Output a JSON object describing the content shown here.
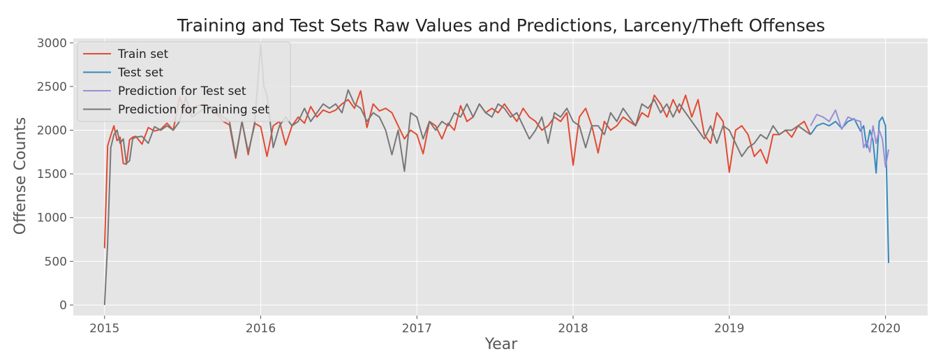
{
  "chart_data": {
    "type": "line",
    "title": "Training and Test Sets Raw Values and Predictions, Larceny/Theft Offenses",
    "xlabel": "Year",
    "ylabel": "Offense Counts",
    "xlim": [
      2014.8,
      2020.27
    ],
    "ylim": [
      -120,
      3050
    ],
    "x_ticks": [
      2015,
      2016,
      2017,
      2018,
      2019,
      2020
    ],
    "x_tick_labels": [
      "2015",
      "2016",
      "2017",
      "2018",
      "2019",
      "2020"
    ],
    "y_ticks": [
      0,
      500,
      1000,
      1500,
      2000,
      2500,
      3000
    ],
    "y_tick_labels": [
      "0",
      "500",
      "1000",
      "1500",
      "2000",
      "2500",
      "3000"
    ],
    "grid": true,
    "legend": "top-left",
    "series": [
      {
        "name": "Train set",
        "color": "#e24a33",
        "x": [
          2015.0,
          2015.02,
          2015.04,
          2015.06,
          2015.08,
          2015.1,
          2015.12,
          2015.14,
          2015.16,
          2015.18,
          2015.2,
          2015.24,
          2015.28,
          2015.32,
          2015.36,
          2015.4,
          2015.44,
          2015.48,
          2015.52,
          2015.56,
          2015.6,
          2015.64,
          2015.68,
          2015.72,
          2015.76,
          2015.8,
          2015.84,
          2015.88,
          2015.92,
          2015.96,
          2016.0,
          2016.04,
          2016.08,
          2016.12,
          2016.16,
          2016.2,
          2016.24,
          2016.28,
          2016.32,
          2016.36,
          2016.4,
          2016.44,
          2016.48,
          2016.52,
          2016.56,
          2016.6,
          2016.64,
          2016.68,
          2016.72,
          2016.76,
          2016.8,
          2016.84,
          2016.88,
          2016.92,
          2016.96,
          2017.0,
          2017.04,
          2017.08,
          2017.12,
          2017.16,
          2017.2,
          2017.24,
          2017.28,
          2017.32,
          2017.36,
          2017.4,
          2017.44,
          2017.48,
          2017.52,
          2017.56,
          2017.6,
          2017.64,
          2017.68,
          2017.72,
          2017.76,
          2017.8,
          2017.84,
          2017.88,
          2017.92,
          2017.96,
          2018.0,
          2018.04,
          2018.08,
          2018.12,
          2018.16,
          2018.2,
          2018.24,
          2018.28,
          2018.32,
          2018.36,
          2018.4,
          2018.44,
          2018.48,
          2018.52,
          2018.56,
          2018.6,
          2018.64,
          2018.68,
          2018.72,
          2018.76,
          2018.8,
          2018.84,
          2018.88,
          2018.92,
          2018.96,
          2019.0,
          2019.04,
          2019.08,
          2019.12,
          2019.16,
          2019.2,
          2019.24,
          2019.28,
          2019.32,
          2019.36,
          2019.4,
          2019.44,
          2019.48,
          2019.52
        ],
        "y": [
          650,
          1820,
          1940,
          2050,
          1880,
          1920,
          1620,
          1610,
          1890,
          1920,
          1930,
          1840,
          2030,
          1990,
          2010,
          2080,
          2000,
          2380,
          2200,
          2260,
          2280,
          2300,
          2240,
          2180,
          2100,
          2060,
          1680,
          2100,
          1720,
          2080,
          2040,
          1700,
          2050,
          2100,
          1830,
          2050,
          2150,
          2080,
          2270,
          2150,
          2230,
          2200,
          2230,
          2300,
          2350,
          2250,
          2450,
          2030,
          2300,
          2220,
          2250,
          2200,
          2050,
          1900,
          2000,
          1950,
          1730,
          2100,
          2050,
          1900,
          2080,
          2000,
          2280,
          2100,
          2150,
          2300,
          2200,
          2250,
          2200,
          2300,
          2200,
          2100,
          2250,
          2150,
          2100,
          2000,
          2050,
          2150,
          2100,
          2200,
          1600,
          2150,
          2250,
          2050,
          1740,
          2100,
          2000,
          2050,
          2150,
          2100,
          2050,
          2200,
          2150,
          2400,
          2300,
          2150,
          2350,
          2200,
          2400,
          2150,
          2350,
          1950,
          1850,
          2200,
          2100,
          1520,
          2000,
          2050,
          1950,
          1700,
          1780,
          1620,
          1950,
          1950,
          2000,
          1920,
          2050,
          2100,
          1950
        ]
      },
      {
        "name": "Test set",
        "color": "#348abd",
        "x": [
          2019.52,
          2019.56,
          2019.6,
          2019.64,
          2019.68,
          2019.72,
          2019.76,
          2019.8,
          2019.84,
          2019.86,
          2019.88,
          2019.9,
          2019.92,
          2019.94,
          2019.96,
          2019.98,
          2020.0,
          2020.02
        ],
        "y": [
          1950,
          2050,
          2080,
          2050,
          2100,
          2020,
          2100,
          2130,
          1990,
          2050,
          1800,
          2000,
          1880,
          1510,
          2100,
          2150,
          2050,
          480
        ]
      },
      {
        "name": "Prediction for Test set",
        "color": "#988ed5",
        "x": [
          2019.52,
          2019.56,
          2019.6,
          2019.64,
          2019.68,
          2019.72,
          2019.76,
          2019.8,
          2019.84,
          2019.86,
          2019.88,
          2019.9,
          2019.92,
          2019.94,
          2019.96,
          2019.98,
          2020.0,
          2020.02
        ],
        "y": [
          2050,
          2180,
          2150,
          2100,
          2230,
          2010,
          2150,
          2120,
          2100,
          1800,
          1870,
          1750,
          2050,
          1850,
          2000,
          1900,
          1580,
          1780
        ]
      },
      {
        "name": "Prediction for Training set",
        "color": "#777777",
        "x": [
          2015.0,
          2015.02,
          2015.04,
          2015.06,
          2015.08,
          2015.1,
          2015.12,
          2015.14,
          2015.16,
          2015.18,
          2015.2,
          2015.24,
          2015.28,
          2015.32,
          2015.36,
          2015.4,
          2015.44,
          2015.48,
          2015.52,
          2015.56,
          2015.6,
          2015.64,
          2015.68,
          2015.72,
          2015.76,
          2015.8,
          2015.84,
          2015.88,
          2015.92,
          2015.96,
          2016.0,
          2016.02,
          2016.04,
          2016.08,
          2016.12,
          2016.16,
          2016.2,
          2016.24,
          2016.28,
          2016.32,
          2016.36,
          2016.4,
          2016.44,
          2016.48,
          2016.52,
          2016.56,
          2016.6,
          2016.64,
          2016.68,
          2016.72,
          2016.76,
          2016.8,
          2016.84,
          2016.88,
          2016.92,
          2016.96,
          2017.0,
          2017.04,
          2017.08,
          2017.12,
          2017.16,
          2017.2,
          2017.24,
          2017.28,
          2017.32,
          2017.36,
          2017.4,
          2017.44,
          2017.48,
          2017.52,
          2017.56,
          2017.6,
          2017.64,
          2017.68,
          2017.72,
          2017.76,
          2017.8,
          2017.84,
          2017.88,
          2017.92,
          2017.96,
          2018.0,
          2018.04,
          2018.08,
          2018.12,
          2018.16,
          2018.2,
          2018.24,
          2018.28,
          2018.32,
          2018.36,
          2018.4,
          2018.44,
          2018.48,
          2018.52,
          2018.56,
          2018.6,
          2018.64,
          2018.68,
          2018.72,
          2018.76,
          2018.8,
          2018.84,
          2018.88,
          2018.92,
          2018.96,
          2019.0,
          2019.04,
          2019.08,
          2019.12,
          2019.16,
          2019.2,
          2019.24,
          2019.28,
          2019.32,
          2019.36,
          2019.4,
          2019.44,
          2019.48,
          2019.52
        ],
        "y": [
          0,
          700,
          1800,
          1950,
          2000,
          1850,
          1900,
          1620,
          1650,
          1900,
          1920,
          1930,
          1850,
          2040,
          2000,
          2050,
          2000,
          2100,
          2380,
          2150,
          2200,
          2250,
          2250,
          2200,
          2150,
          2100,
          1700,
          2100,
          1750,
          2050,
          2980,
          2500,
          2400,
          1800,
          2050,
          2150,
          2050,
          2100,
          2250,
          2100,
          2200,
          2300,
          2250,
          2300,
          2200,
          2460,
          2300,
          2250,
          2100,
          2200,
          2150,
          2000,
          1720,
          2000,
          1530,
          2200,
          2150,
          1900,
          2100,
          2000,
          2100,
          2050,
          2200,
          2150,
          2300,
          2150,
          2300,
          2200,
          2150,
          2300,
          2250,
          2150,
          2200,
          2050,
          1900,
          2000,
          2150,
          1850,
          2200,
          2150,
          2250,
          2100,
          2050,
          1800,
          2050,
          2050,
          1950,
          2200,
          2100,
          2250,
          2150,
          2050,
          2300,
          2250,
          2350,
          2200,
          2300,
          2150,
          2300,
          2200,
          2100,
          2000,
          1900,
          2050,
          1850,
          2050,
          2000,
          1850,
          1700,
          1800,
          1850,
          1950,
          1900,
          2050,
          1950,
          2000,
          2000,
          2050,
          2000,
          1950
        ]
      }
    ]
  }
}
